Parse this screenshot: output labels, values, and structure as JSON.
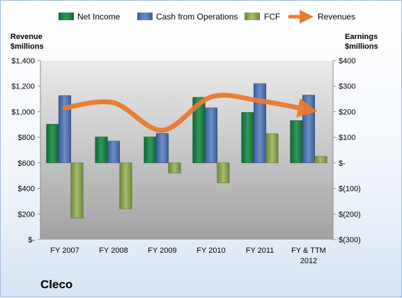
{
  "chart_data": {
    "type": "bar",
    "title": "Cleco",
    "categories": [
      [
        "FY 2007"
      ],
      [
        "FY 2008"
      ],
      [
        "FY 2009"
      ],
      [
        "FY 2010"
      ],
      [
        "FY 2011"
      ],
      [
        "FY & TTM",
        "2012"
      ]
    ],
    "left_axis": {
      "label_lines": [
        "Revenue",
        "$millions"
      ],
      "ylim": [
        0,
        1400
      ],
      "tick_values": [
        0,
        200,
        400,
        600,
        800,
        1000,
        1200,
        1400
      ],
      "tick_labels": [
        "$-",
        "$200",
        "$400",
        "$600",
        "$800",
        "$1,000",
        "$1,200",
        "$1,400"
      ]
    },
    "right_axis": {
      "label_lines": [
        "Earnings",
        "$millions"
      ],
      "ylim": [
        -300,
        400
      ],
      "tick_values": [
        -300,
        -200,
        -100,
        0,
        100,
        200,
        300,
        400
      ],
      "tick_labels": [
        "$(300)",
        "$(200)",
        "$(100)",
        "$-",
        "$100",
        "$200",
        "$300",
        "$400"
      ]
    },
    "series": [
      {
        "name": "Net Income",
        "type": "bar",
        "axis": "right",
        "color": "#1e7b45",
        "values": [
          151,
          101,
          101,
          256,
          197,
          165
        ]
      },
      {
        "name": "Cash from Operations",
        "type": "bar",
        "axis": "right",
        "color": "#4e71aa",
        "values": [
          263,
          85,
          115,
          215,
          310,
          265
        ]
      },
      {
        "name": "FCF",
        "type": "bar",
        "axis": "right",
        "color": "#7f9a48",
        "values": [
          -216,
          -180,
          -40,
          -78,
          114,
          25
        ]
      },
      {
        "name": "Revenues",
        "type": "line",
        "axis": "left",
        "color": "#e87b2e",
        "values": [
          1030,
          1070,
          855,
          1115,
          1085,
          1015
        ]
      }
    ],
    "grid": false,
    "legend_position": "top"
  }
}
